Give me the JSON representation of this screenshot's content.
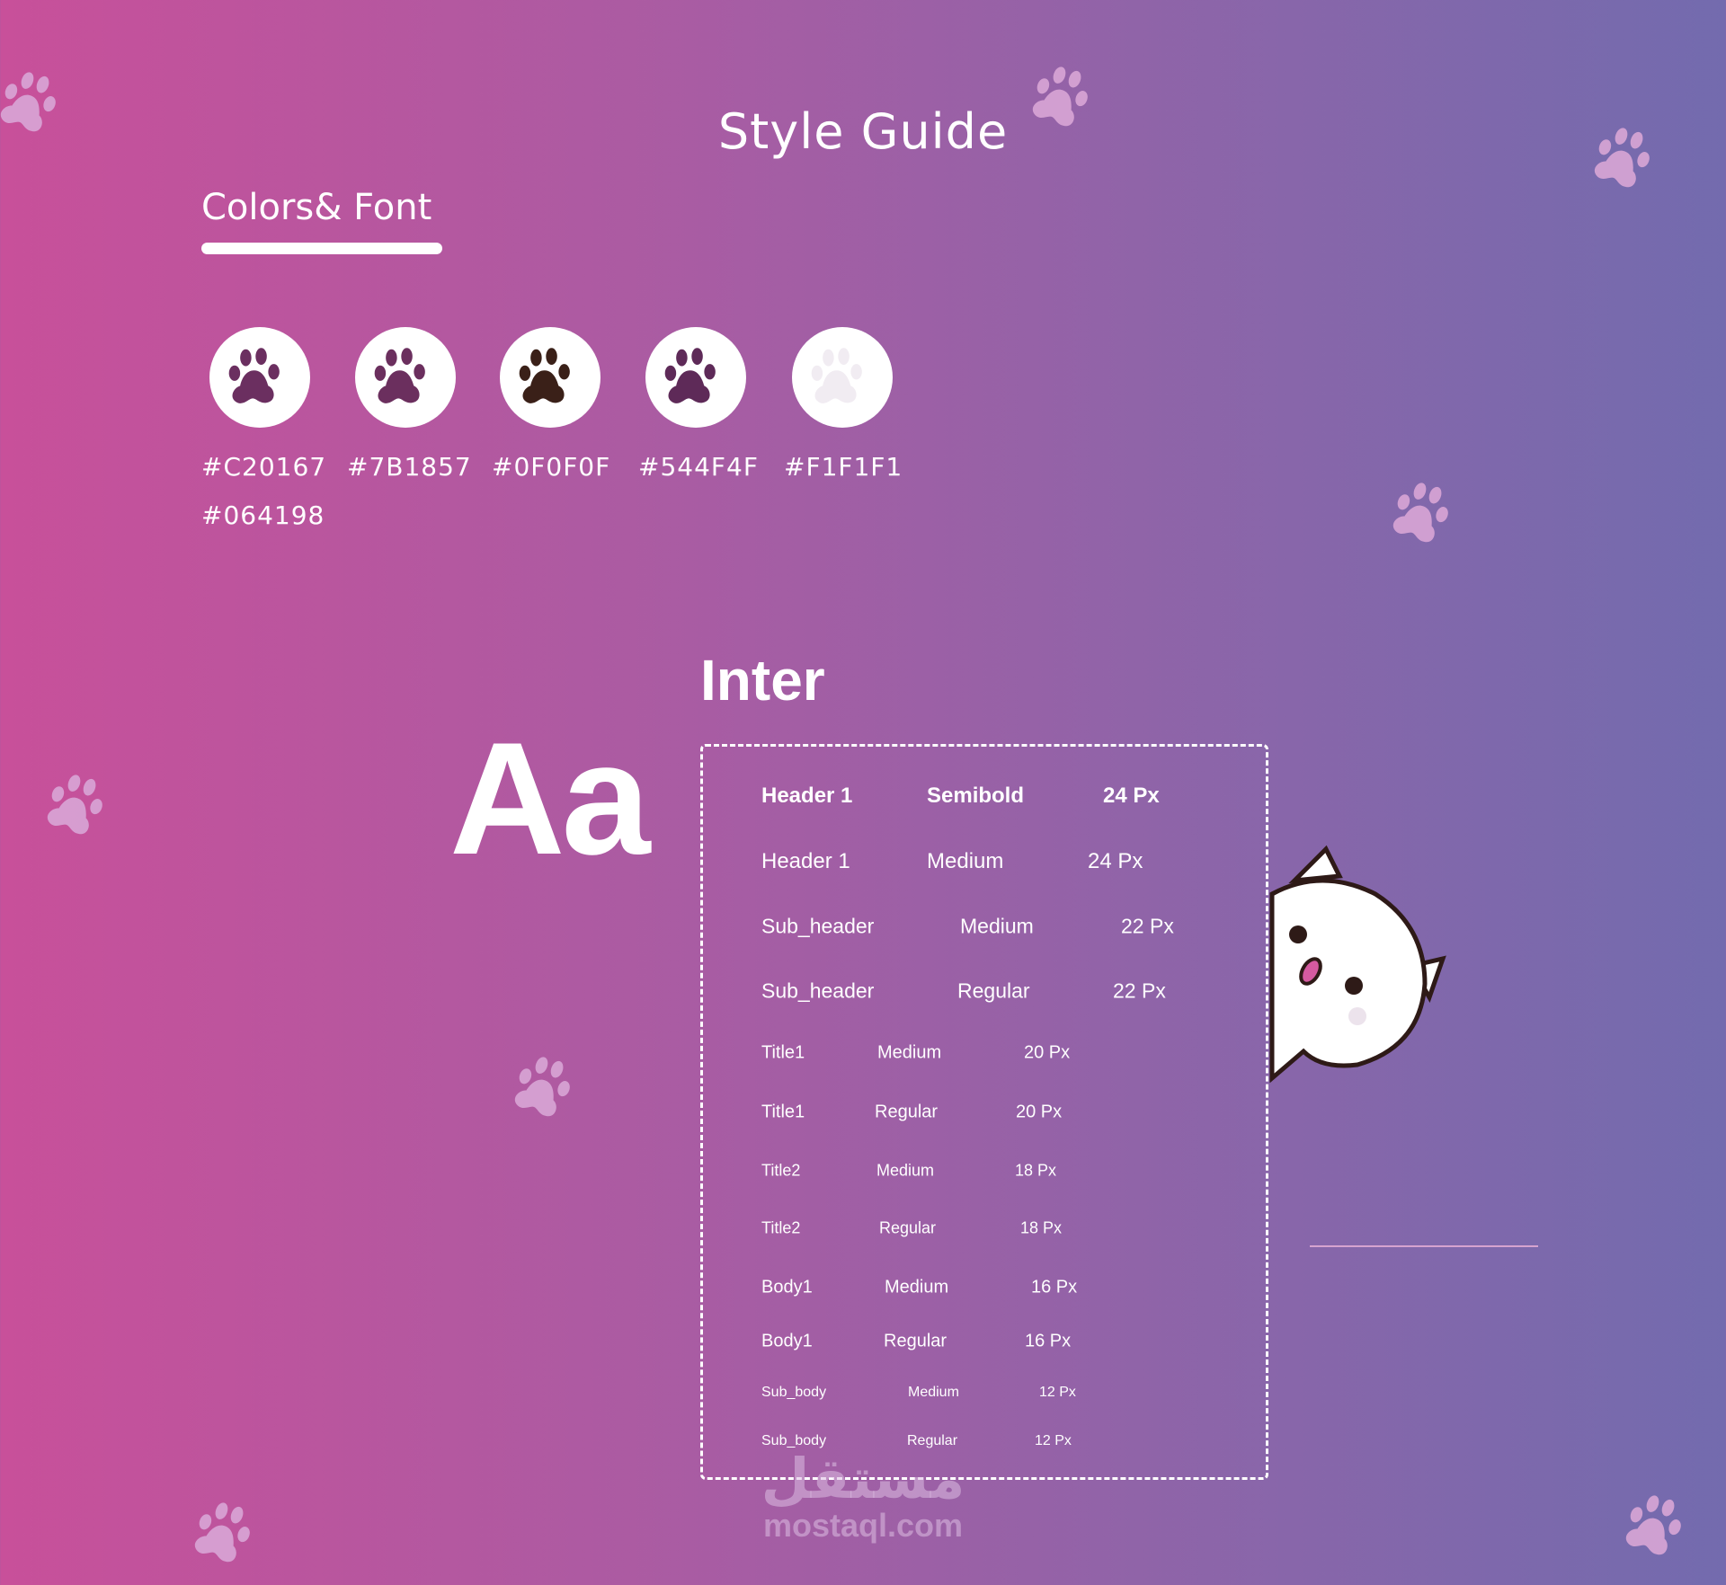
{
  "title": "Style Guide",
  "section_title": "Colors& Font",
  "swatches": [
    {
      "hex": "#C20167",
      "paw_color": "#6b2f60"
    },
    {
      "hex": "#7B1857",
      "paw_color": "#6b2f5e"
    },
    {
      "hex": "#0F0F0F",
      "paw_color": "#3a2018"
    },
    {
      "hex": "#544F4F",
      "paw_color": "#5e2a58"
    },
    {
      "hex": "#F1F1F1",
      "paw_color": "#f1ecf2"
    }
  ],
  "extra_hex": "#064198",
  "font_name": "Inter",
  "font_sample": "Aa",
  "type_scale": [
    {
      "name": "Header 1",
      "weight": "Semibold",
      "size": "24 Px"
    },
    {
      "name": "Header 1",
      "weight": "Medium",
      "size": "24 Px"
    },
    {
      "name": "Sub_header",
      "weight": "Medium",
      "size": "22 Px"
    },
    {
      "name": "Sub_header",
      "weight": "Regular",
      "size": "22 Px"
    },
    {
      "name": "Title1",
      "weight": "Medium",
      "size": "20 Px"
    },
    {
      "name": "Title1",
      "weight": "Regular",
      "size": "20 Px"
    },
    {
      "name": "Title2",
      "weight": "Medium",
      "size": "18 Px"
    },
    {
      "name": "Title2",
      "weight": "Regular",
      "size": "18 Px"
    },
    {
      "name": "Body1",
      "weight": "Medium",
      "size": "16 Px"
    },
    {
      "name": "Body1",
      "weight": "Regular",
      "size": "16 Px"
    },
    {
      "name": "Sub_body",
      "weight": "Medium",
      "size": "12 Px"
    },
    {
      "name": "Sub_body",
      "weight": "Regular",
      "size": "12 Px"
    }
  ],
  "watermark": {
    "arabic": "مستقل",
    "latin": "mostaql.com"
  },
  "colors": {
    "bg_left": "#c8509a",
    "bg_right": "#736bae",
    "decor_paw": "#d9a6d6"
  }
}
